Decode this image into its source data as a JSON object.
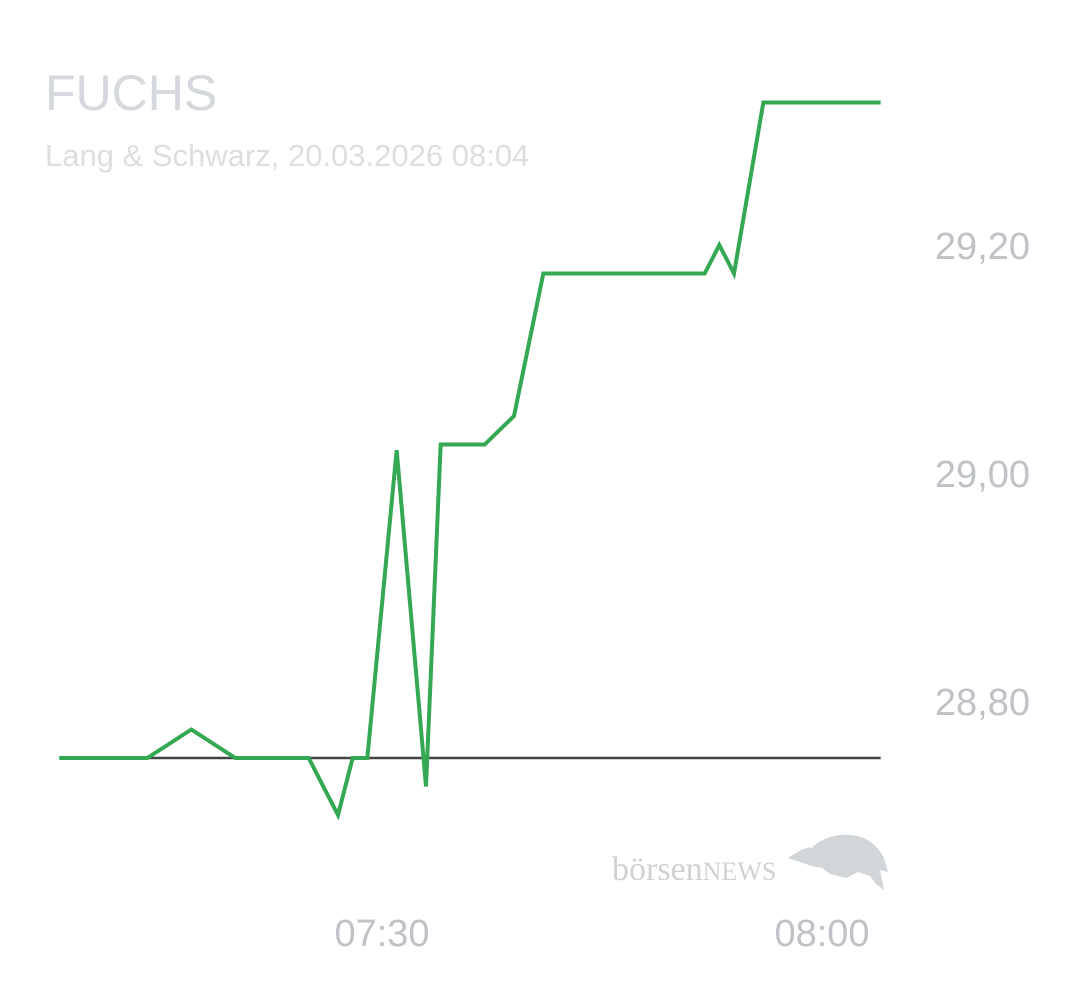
{
  "header": {
    "title": "FUCHS",
    "subtitle": "Lang & Schwarz, 20.03.2026 08:04"
  },
  "logo": {
    "text_light": "börsen",
    "text_caps": "NEWS",
    "icon": "bull-icon"
  },
  "chart_data": {
    "type": "line",
    "title": "FUCHS",
    "subtitle": "Lang & Schwarz, 20.03.2026 08:04",
    "xlabel": "",
    "ylabel": "",
    "x_ticks": [
      "07:30",
      "08:00"
    ],
    "y_ticks": [
      {
        "value": 28.8,
        "label": "28,80"
      },
      {
        "value": 29.0,
        "label": "29,00"
      },
      {
        "value": 29.2,
        "label": "29,20"
      }
    ],
    "ylim": [
      28.68,
      29.34
    ],
    "xlim": [
      "07:08",
      "08:04"
    ],
    "grid": false,
    "reference_line": {
      "value": 28.75,
      "color": "#444444"
    },
    "series": [
      {
        "color": "#34a853",
        "points": [
          {
            "x": "07:08",
            "y": 28.75
          },
          {
            "x": "07:14",
            "y": 28.75
          },
          {
            "x": "07:17",
            "y": 28.775
          },
          {
            "x": "07:20",
            "y": 28.75
          },
          {
            "x": "07:25",
            "y": 28.75
          },
          {
            "x": "07:27",
            "y": 28.7
          },
          {
            "x": "07:28",
            "y": 28.75
          },
          {
            "x": "07:29",
            "y": 28.75
          },
          {
            "x": "07:31",
            "y": 29.02
          },
          {
            "x": "07:33",
            "y": 28.725
          },
          {
            "x": "07:34",
            "y": 29.025
          },
          {
            "x": "07:37",
            "y": 29.025
          },
          {
            "x": "07:39",
            "y": 29.05
          },
          {
            "x": "07:41",
            "y": 29.175
          },
          {
            "x": "07:52",
            "y": 29.175
          },
          {
            "x": "07:53",
            "y": 29.2
          },
          {
            "x": "07:54",
            "y": 29.175
          },
          {
            "x": "07:56",
            "y": 29.325
          },
          {
            "x": "08:04",
            "y": 29.325
          }
        ]
      }
    ]
  }
}
